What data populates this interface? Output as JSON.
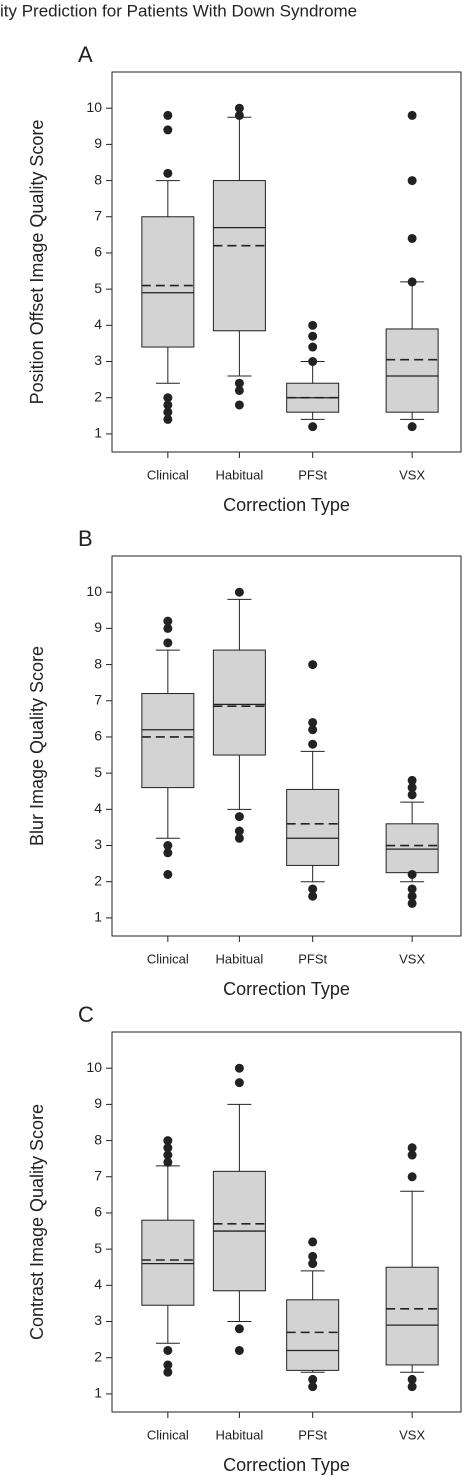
{
  "title": "ity Prediction for Patients With Down Syndrome",
  "chart_data": [
    {
      "type": "box",
      "panel": "A",
      "ylabel": "Position Offset Image Quality Score",
      "xlabel": "Correction Type",
      "categories": [
        "Clinical",
        "Habitual",
        "PFSt",
        "VSX"
      ],
      "color": "#d3d3d3",
      "ylim": [
        0.5,
        11.0
      ],
      "yticks": [
        1,
        2,
        3,
        4,
        5,
        6,
        7,
        8,
        9,
        10
      ],
      "boxes": [
        {
          "whislo": 2.4,
          "q1": 3.4,
          "med": 4.9,
          "mean": 5.1,
          "q3": 7.0,
          "whishi": 8.0,
          "fliers": [
            1.4,
            1.6,
            1.8,
            2.0,
            8.2,
            9.4,
            9.8
          ]
        },
        {
          "whislo": 2.6,
          "q1": 3.85,
          "med": 6.7,
          "mean": 6.2,
          "q3": 8.0,
          "whishi": 9.75,
          "fliers": [
            1.8,
            2.2,
            2.4,
            9.8,
            10.0
          ]
        },
        {
          "whislo": 1.4,
          "q1": 1.6,
          "med": 2.0,
          "mean": 2.0,
          "q3": 2.4,
          "whishi": 3.0,
          "fliers": [
            1.2,
            3.0,
            3.4,
            3.7,
            4.0
          ]
        },
        {
          "whislo": 1.4,
          "q1": 1.6,
          "med": 2.6,
          "mean": 3.05,
          "q3": 3.9,
          "whishi": 5.2,
          "fliers": [
            1.2,
            5.2,
            6.4,
            8.0,
            9.8
          ]
        }
      ]
    },
    {
      "type": "box",
      "panel": "B",
      "ylabel": "Blur Image Quality Score",
      "xlabel": "Correction Type",
      "categories": [
        "Clinical",
        "Habitual",
        "PFSt",
        "VSX"
      ],
      "color": "#d3d3d3",
      "ylim": [
        0.5,
        11.0
      ],
      "yticks": [
        1,
        2,
        3,
        4,
        5,
        6,
        7,
        8,
        9,
        10
      ],
      "boxes": [
        {
          "whislo": 3.2,
          "q1": 4.6,
          "med": 6.2,
          "mean": 6.0,
          "q3": 7.2,
          "whishi": 8.4,
          "fliers": [
            2.2,
            2.8,
            3.0,
            8.6,
            9.0,
            9.2
          ]
        },
        {
          "whislo": 4.0,
          "q1": 5.5,
          "med": 6.9,
          "mean": 6.85,
          "q3": 8.4,
          "whishi": 9.8,
          "fliers": [
            3.2,
            3.4,
            3.8,
            10.0
          ]
        },
        {
          "whislo": 2.0,
          "q1": 2.45,
          "med": 3.2,
          "mean": 3.6,
          "q3": 4.55,
          "whishi": 5.6,
          "fliers": [
            1.6,
            1.8,
            5.8,
            6.2,
            6.4,
            8.0
          ]
        },
        {
          "whislo": 2.0,
          "q1": 2.25,
          "med": 2.9,
          "mean": 3.0,
          "q3": 3.6,
          "whishi": 4.2,
          "fliers": [
            1.4,
            1.6,
            1.8,
            2.2,
            4.4,
            4.6,
            4.8
          ]
        }
      ]
    },
    {
      "type": "box",
      "panel": "C",
      "ylabel": "Contrast Image Quality Score",
      "xlabel": "Correction Type",
      "categories": [
        "Clinical",
        "Habitual",
        "PFSt",
        "VSX"
      ],
      "color": "#d3d3d3",
      "ylim": [
        0.5,
        11.0
      ],
      "yticks": [
        1,
        2,
        3,
        4,
        5,
        6,
        7,
        8,
        9,
        10
      ],
      "boxes": [
        {
          "whislo": 2.4,
          "q1": 3.45,
          "med": 4.6,
          "mean": 4.7,
          "q3": 5.8,
          "whishi": 7.3,
          "fliers": [
            1.6,
            1.8,
            2.2,
            7.4,
            7.6,
            7.8,
            8.0
          ]
        },
        {
          "whislo": 3.0,
          "q1": 3.85,
          "med": 5.5,
          "mean": 5.7,
          "q3": 7.15,
          "whishi": 9.0,
          "fliers": [
            2.2,
            2.8,
            9.6,
            10.0
          ]
        },
        {
          "whislo": 1.6,
          "q1": 1.65,
          "med": 2.2,
          "mean": 2.7,
          "q3": 3.6,
          "whishi": 4.4,
          "fliers": [
            1.2,
            1.4,
            4.6,
            4.8,
            5.2
          ]
        },
        {
          "whislo": 1.6,
          "q1": 1.8,
          "med": 2.9,
          "mean": 3.35,
          "q3": 4.5,
          "whishi": 6.6,
          "fliers": [
            1.2,
            1.4,
            7.0,
            7.6,
            7.8
          ]
        }
      ]
    }
  ]
}
